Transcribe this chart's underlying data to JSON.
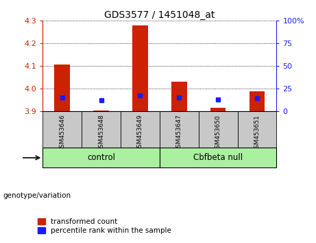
{
  "title": "GDS3577 / 1451048_at",
  "samples": [
    "GSM453646",
    "GSM453648",
    "GSM453649",
    "GSM453647",
    "GSM453650",
    "GSM453651"
  ],
  "red_bar_top": [
    4.107,
    3.905,
    4.278,
    4.03,
    3.916,
    3.99
  ],
  "blue_dot_y": [
    3.963,
    3.95,
    3.972,
    3.962,
    3.952,
    3.96
  ],
  "bar_base": 3.9,
  "ylim": [
    3.9,
    4.3
  ],
  "yticks_left": [
    3.9,
    4.0,
    4.1,
    4.2,
    4.3
  ],
  "yticks_right_labels": [
    "0",
    "25",
    "50",
    "75",
    "100%"
  ],
  "yticks_right_vals": [
    3.9,
    4.0,
    4.1,
    4.2,
    4.3
  ],
  "groups": [
    {
      "label": "control",
      "indices": [
        0,
        1,
        2
      ]
    },
    {
      "label": "Cbfbeta null",
      "indices": [
        3,
        4,
        5
      ]
    }
  ],
  "group_label_prefix": "genotype/variation",
  "bar_color": "#cc2200",
  "dot_color": "#1a1aff",
  "bg_color": "#c8c8c8",
  "left_axis_color": "#cc2200",
  "right_axis_color": "#1a1aff",
  "group_box_color": "#aaf0a0",
  "legend_red": "transformed count",
  "legend_blue": "percentile rank within the sample"
}
